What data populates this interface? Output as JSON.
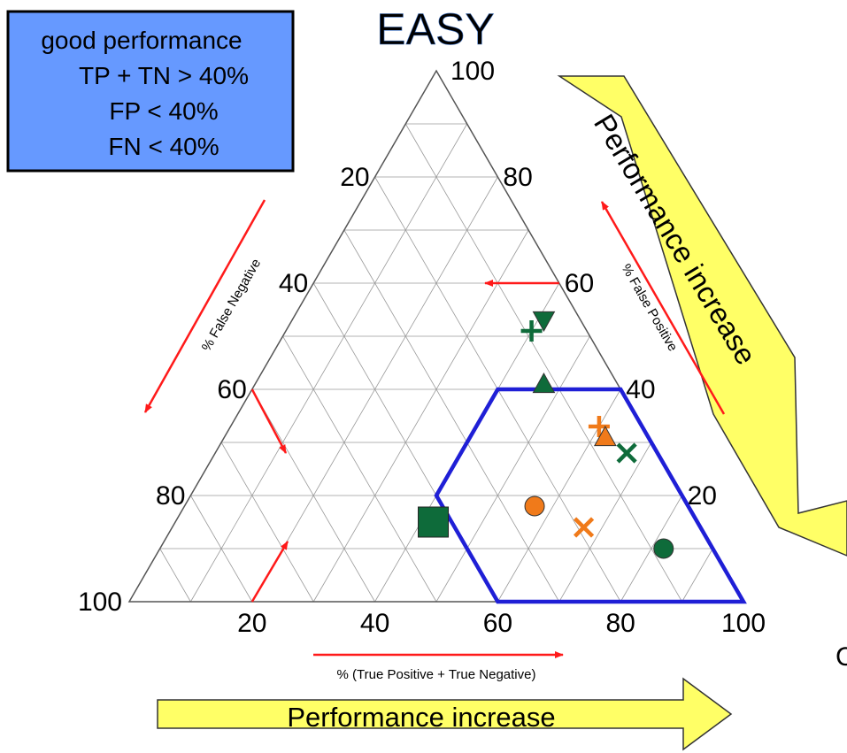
{
  "title": "EASY",
  "criteria_box": {
    "heading": "good performance",
    "lines": [
      "TP + TN > 40%",
      "FP < 40%",
      "FN < 40%"
    ]
  },
  "arrows": {
    "right_label": "Performance increase",
    "bottom_label": "Performance increase"
  },
  "edge_glyph": "C",
  "colors": {
    "title": "#6b9be8",
    "criteria_fill": "#6699ff",
    "yellow_arrow": "#ffff66",
    "region": "#1f1fd6",
    "green_series": "#0e6b3a",
    "orange_series": "#f07a1a",
    "red_arrow": "#ff1a1a",
    "grid": "#9a9a9a"
  },
  "chart_data": {
    "type": "ternary",
    "axes": {
      "tp_tn": {
        "label": "% (True Positive + True Negative)",
        "ticks": [
          "20",
          "40",
          "60",
          "80",
          "100"
        ]
      },
      "fp": {
        "label": "% False Positive",
        "ticks": [
          "20",
          "40",
          "60",
          "80",
          "100"
        ]
      },
      "fn": {
        "label": "% False Negative",
        "ticks": [
          "20",
          "40",
          "60",
          "80",
          "100"
        ]
      }
    },
    "grid": true,
    "grid_step": 10,
    "good_region": [
      {
        "tp_tn": 60,
        "fp": 0,
        "fn": 40
      },
      {
        "tp_tn": 100,
        "fp": 0,
        "fn": 0
      },
      {
        "tp_tn": 60,
        "fp": 40,
        "fn": 0
      },
      {
        "tp_tn": 40,
        "fp": 40,
        "fn": 20
      },
      {
        "tp_tn": 40,
        "fp": 20,
        "fn": 40
      }
    ],
    "points": [
      {
        "series": "green",
        "marker": "triangle-down",
        "tp_tn": 41,
        "fp": 53,
        "fn": 6
      },
      {
        "series": "green",
        "marker": "plus",
        "tp_tn": 40,
        "fp": 51,
        "fn": 9
      },
      {
        "series": "green",
        "marker": "triangle-up",
        "tp_tn": 47,
        "fp": 41,
        "fn": 12
      },
      {
        "series": "orange",
        "marker": "plus",
        "tp_tn": 60,
        "fp": 33,
        "fn": 7
      },
      {
        "series": "orange",
        "marker": "triangle-up",
        "tp_tn": 62,
        "fp": 31,
        "fn": 7
      },
      {
        "series": "green",
        "marker": "x",
        "tp_tn": 67,
        "fp": 28,
        "fn": 5
      },
      {
        "series": "green",
        "marker": "square",
        "tp_tn": 42,
        "fp": 15,
        "fn": 43
      },
      {
        "series": "orange",
        "marker": "circle",
        "tp_tn": 57,
        "fp": 18,
        "fn": 25
      },
      {
        "series": "orange",
        "marker": "x",
        "tp_tn": 67,
        "fp": 14,
        "fn": 19
      },
      {
        "series": "green",
        "marker": "circle",
        "tp_tn": 82,
        "fp": 10,
        "fn": 8
      }
    ]
  }
}
